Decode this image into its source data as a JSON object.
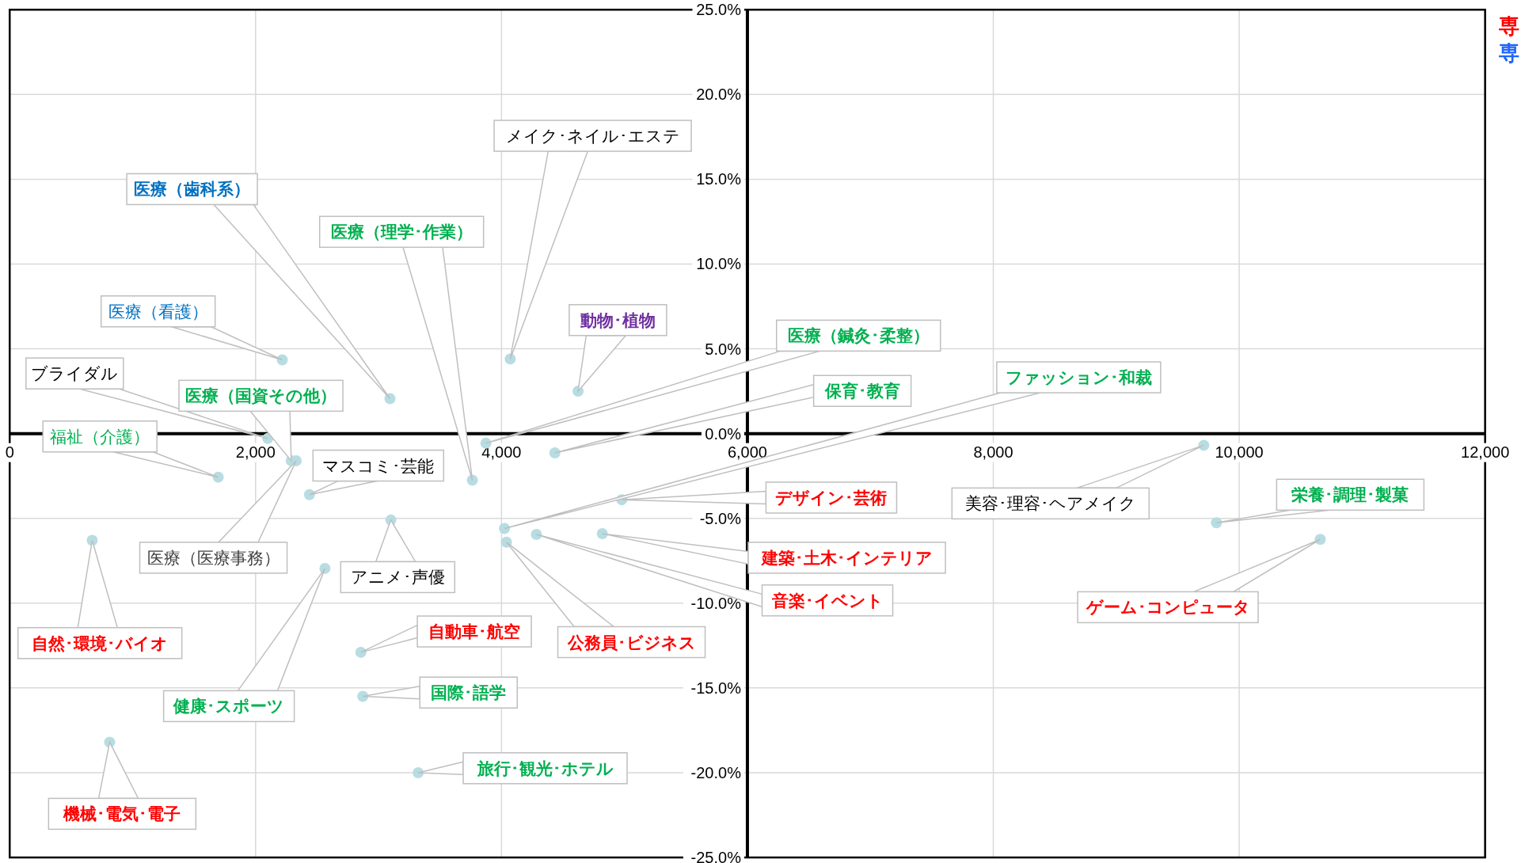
{
  "chart_data": {
    "type": "scatter",
    "xlim": [
      0,
      12000
    ],
    "ylim": [
      -25,
      25
    ],
    "xticks": [
      0,
      {
        "value": 2000,
        "label": "2,000"
      },
      {
        "value": 4000,
        "label": "4,000"
      },
      {
        "value": 6000,
        "label": "6,000"
      },
      {
        "value": 8000,
        "label": "8,000"
      },
      {
        "value": 10000,
        "label": "10,000"
      },
      {
        "value": 12000,
        "label": "12,000"
      }
    ],
    "yticks": [
      {
        "value": -25,
        "label": "-25.0%"
      },
      {
        "value": -20,
        "label": "-20.0%"
      },
      {
        "value": -15,
        "label": "-15.0%"
      },
      {
        "value": -10,
        "label": "-10.0%"
      },
      {
        "value": -5,
        "label": "-5.0%"
      },
      {
        "value": 0,
        "label": "0.0%"
      },
      {
        "value": 5,
        "label": "5.0%"
      },
      {
        "value": 10,
        "label": "10.0%"
      },
      {
        "value": 15,
        "label": "15.0%"
      },
      {
        "value": 20,
        "label": "20.0%"
      },
      {
        "value": 25,
        "label": "25.0%"
      }
    ],
    "grid": true,
    "marker": "circle",
    "annotations": [
      "専",
      "専",
      "医療（看護）",
      "医療（歯科系）",
      "メイク･ネイル･エステ",
      "動物･植物",
      "医療（理学･作業）",
      "ブライダル",
      "医療（国資その他）",
      "福祉（介護）",
      "医療（鍼灸･柔整）",
      "保育･教育",
      "ファッション･和裁",
      "マスコミ･芸能",
      "医療（医療事務）",
      "アニメ･声優",
      "デザイン･芸術",
      "建築･土木･インテリア",
      "音楽･イベント",
      "公務員･ビジネス",
      "自然･環境･バイオ",
      "健康･スポーツ",
      "自動車･航空",
      "国際･語学",
      "旅行･観光･ホテル",
      "機械･電気･電子",
      "美容･理容･ヘアメイク",
      "栄養･調理･製菓",
      "ゲーム･コンピュータ"
    ],
    "series": [
      {
        "color": "#b7dde3",
        "x": [
          2217,
          3093,
          4071,
          4623,
          3763,
          2099,
          2290,
          1696,
          3873,
          4434,
          4024,
          2438,
          2330,
          3100,
          4978,
          4820,
          4284,
          4040,
          671,
          2564,
          2856,
          2872,
          3322,
          813,
          9712,
          9815,
          10659
        ],
        "values": [
          4.35,
          2.06,
          4.4,
          2.5,
          -2.75,
          -0.29,
          -1.6,
          -2.57,
          -0.57,
          -1.14,
          -5.6,
          -3.6,
          -1.6,
          -5.1,
          -3.9,
          -5.9,
          -5.95,
          -6.4,
          -6.3,
          -7.95,
          -12.9,
          -15.5,
          -20.0,
          -18.2,
          -0.69,
          -5.26,
          -6.24
        ]
      }
    ]
  }
}
